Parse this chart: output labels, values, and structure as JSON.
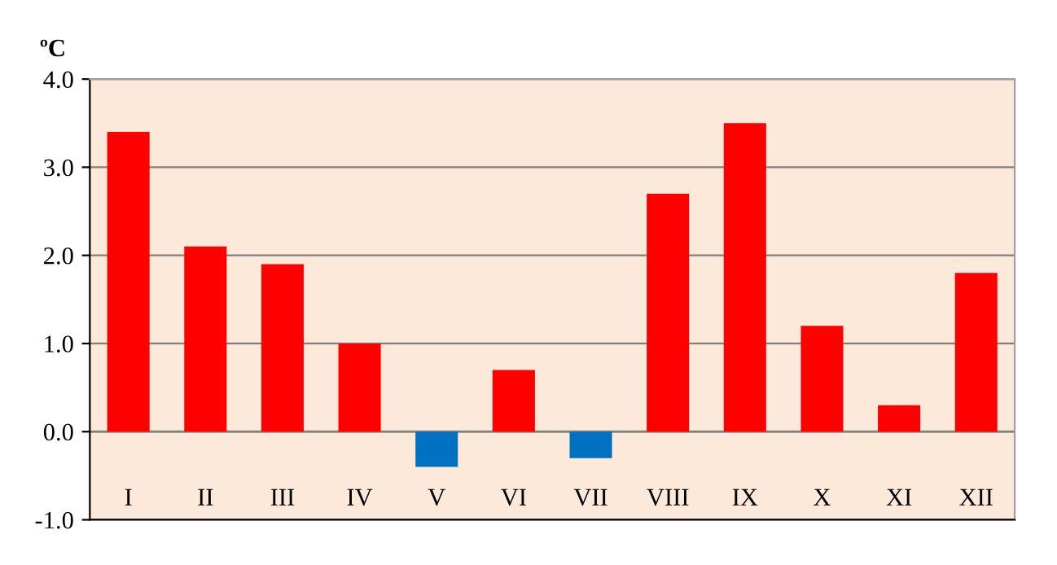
{
  "chart_data": {
    "type": "bar",
    "ylabel": "ºC",
    "categories": [
      "I",
      "II",
      "III",
      "IV",
      "V",
      "VI",
      "VII",
      "VIII",
      "IX",
      "X",
      "XI",
      "XII"
    ],
    "values": [
      3.4,
      2.1,
      1.9,
      1.0,
      -0.4,
      0.7,
      -0.3,
      2.7,
      3.5,
      1.2,
      0.3,
      1.8
    ],
    "colors": [
      "#ff0000",
      "#ff0000",
      "#ff0000",
      "#ff0000",
      "#0070c0",
      "#ff0000",
      "#0070c0",
      "#ff0000",
      "#ff0000",
      "#ff0000",
      "#ff0000",
      "#ff0000"
    ],
    "ylim": [
      -1.0,
      4.0
    ],
    "yticks": [
      {
        "value": -1.0,
        "label": "-1.0"
      },
      {
        "value": 0.0,
        "label": "0.0"
      },
      {
        "value": 1.0,
        "label": "1.0"
      },
      {
        "value": 2.0,
        "label": "2.0"
      },
      {
        "value": 3.0,
        "label": "3.0"
      },
      {
        "value": 4.0,
        "label": "4.0"
      }
    ],
    "grid": "y"
  }
}
